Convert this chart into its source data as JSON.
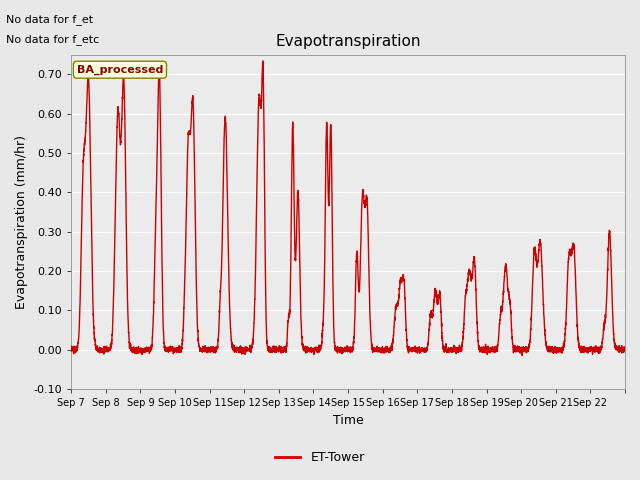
{
  "title": "Evapotranspiration",
  "xlabel": "Time",
  "ylabel": "Evapotranspiration (mm/hr)",
  "ylim": [
    -0.1,
    0.75
  ],
  "yticks": [
    -0.1,
    0.0,
    0.1,
    0.2,
    0.3,
    0.4,
    0.5,
    0.6,
    0.7
  ],
  "background_color": "#e8e8e8",
  "plot_bg_color": "#ebebeb",
  "line_color": "#cc0000",
  "line_width": 1.0,
  "note1": "No data for f_et",
  "note2": "No data for f_etc",
  "legend_label": "ET-Tower",
  "legend_box_label": "BA_processed",
  "x_tick_labels": [
    "Sep 7",
    "Sep 8",
    "Sep 9",
    "Sep 10",
    "Sep 11",
    "Sep 12",
    "Sep 13",
    "Sep 14",
    "Sep 15",
    "Sep 16",
    "Sep 17",
    "Sep 18",
    "Sep 19",
    "Sep 20",
    "Sep 21",
    "Sep 22"
  ],
  "figsize": [
    6.4,
    4.8
  ],
  "dpi": 100,
  "days": 16,
  "pts_per_day": 288
}
